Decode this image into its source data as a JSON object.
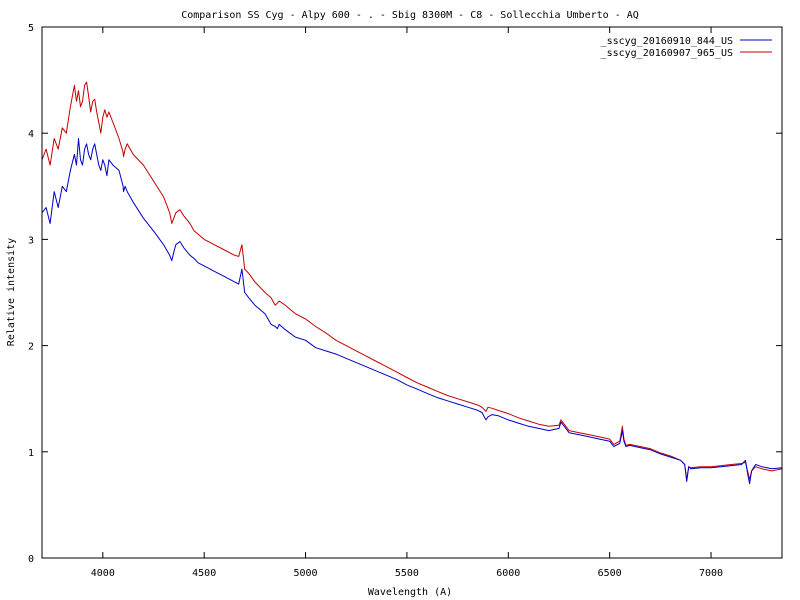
{
  "chart_data": {
    "type": "line",
    "title": "Comparison SS Cyg  - Alpy 600 - . - Sbig 8300M -  C8  - Sollecchia Umberto - AQ",
    "xlabel": "Wavelength (A)",
    "ylabel": "Relative intensity",
    "xlim": [
      3700,
      7350
    ],
    "ylim": [
      0,
      5
    ],
    "xticks": [
      4000,
      4500,
      5000,
      5500,
      6000,
      6500,
      7000
    ],
    "yticks": [
      0,
      1,
      2,
      3,
      4,
      5
    ],
    "grid": false,
    "legend_position": "top-right",
    "series": [
      {
        "name": "_sscyg_20160910_844_US",
        "color": "#0000c8",
        "x": [
          3700,
          3720,
          3740,
          3760,
          3780,
          3800,
          3820,
          3840,
          3860,
          3870,
          3880,
          3890,
          3900,
          3910,
          3920,
          3930,
          3940,
          3950,
          3960,
          3970,
          3980,
          3990,
          4000,
          4010,
          4020,
          4030,
          4050,
          4080,
          4100,
          4102,
          4110,
          4120,
          4150,
          4200,
          4250,
          4300,
          4330,
          4340,
          4350,
          4360,
          4380,
          4400,
          4430,
          4450,
          4470,
          4500,
          4550,
          4600,
          4650,
          4670,
          4686,
          4700,
          4720,
          4750,
          4800,
          4830,
          4850,
          4861,
          4870,
          4900,
          4950,
          5000,
          5050,
          5100,
          5150,
          5200,
          5250,
          5300,
          5350,
          5400,
          5450,
          5500,
          5550,
          5600,
          5650,
          5700,
          5750,
          5800,
          5850,
          5870,
          5890,
          5900,
          5920,
          5950,
          6000,
          6050,
          6100,
          6150,
          6200,
          6250,
          6260,
          6300,
          6350,
          6400,
          6450,
          6500,
          6520,
          6550,
          6563,
          6570,
          6580,
          6600,
          6650,
          6700,
          6750,
          6800,
          6850,
          6870,
          6880,
          6890,
          6900,
          6950,
          7000,
          7050,
          7100,
          7150,
          7170,
          7180,
          7190,
          7200,
          7220,
          7250,
          7300,
          7350
        ],
        "y": [
          3.25,
          3.3,
          3.15,
          3.45,
          3.3,
          3.5,
          3.45,
          3.65,
          3.8,
          3.7,
          3.95,
          3.75,
          3.7,
          3.85,
          3.9,
          3.8,
          3.75,
          3.85,
          3.9,
          3.8,
          3.7,
          3.65,
          3.75,
          3.7,
          3.6,
          3.75,
          3.7,
          3.65,
          3.5,
          3.45,
          3.5,
          3.45,
          3.35,
          3.2,
          3.08,
          2.95,
          2.85,
          2.8,
          2.88,
          2.95,
          2.98,
          2.92,
          2.85,
          2.82,
          2.78,
          2.75,
          2.7,
          2.65,
          2.6,
          2.58,
          2.72,
          2.5,
          2.45,
          2.38,
          2.3,
          2.2,
          2.18,
          2.16,
          2.2,
          2.15,
          2.08,
          2.05,
          1.98,
          1.95,
          1.92,
          1.88,
          1.84,
          1.8,
          1.76,
          1.72,
          1.68,
          1.63,
          1.59,
          1.55,
          1.51,
          1.48,
          1.45,
          1.42,
          1.39,
          1.37,
          1.3,
          1.33,
          1.35,
          1.34,
          1.3,
          1.27,
          1.24,
          1.22,
          1.2,
          1.22,
          1.28,
          1.18,
          1.16,
          1.14,
          1.12,
          1.1,
          1.05,
          1.08,
          1.2,
          1.1,
          1.05,
          1.06,
          1.04,
          1.02,
          0.98,
          0.95,
          0.92,
          0.88,
          0.72,
          0.86,
          0.84,
          0.85,
          0.85,
          0.86,
          0.87,
          0.88,
          0.92,
          0.8,
          0.7,
          0.82,
          0.88,
          0.86,
          0.84,
          0.85
        ]
      },
      {
        "name": "_sscyg_20160907_965_US",
        "color": "#c80000",
        "x": [
          3700,
          3720,
          3740,
          3760,
          3780,
          3800,
          3820,
          3840,
          3860,
          3870,
          3880,
          3890,
          3900,
          3910,
          3920,
          3930,
          3940,
          3950,
          3960,
          3970,
          3980,
          3990,
          4000,
          4010,
          4020,
          4030,
          4050,
          4080,
          4100,
          4102,
          4110,
          4120,
          4150,
          4200,
          4250,
          4300,
          4330,
          4340,
          4350,
          4360,
          4380,
          4400,
          4430,
          4450,
          4470,
          4500,
          4550,
          4600,
          4650,
          4670,
          4686,
          4700,
          4720,
          4750,
          4800,
          4830,
          4850,
          4861,
          4870,
          4900,
          4950,
          5000,
          5050,
          5100,
          5150,
          5200,
          5250,
          5300,
          5350,
          5400,
          5450,
          5500,
          5550,
          5600,
          5650,
          5700,
          5750,
          5800,
          5850,
          5870,
          5890,
          5900,
          5920,
          5950,
          6000,
          6050,
          6100,
          6150,
          6200,
          6250,
          6260,
          6300,
          6350,
          6400,
          6450,
          6500,
          6520,
          6550,
          6563,
          6570,
          6580,
          6600,
          6650,
          6700,
          6750,
          6800,
          6850,
          6870,
          6880,
          6890,
          6900,
          6950,
          7000,
          7050,
          7100,
          7150,
          7170,
          7180,
          7190,
          7200,
          7220,
          7250,
          7300,
          7350
        ],
        "y": [
          3.75,
          3.85,
          3.7,
          3.95,
          3.85,
          4.05,
          4.0,
          4.25,
          4.45,
          4.3,
          4.4,
          4.25,
          4.3,
          4.45,
          4.48,
          4.35,
          4.2,
          4.3,
          4.32,
          4.2,
          4.1,
          4.0,
          4.15,
          4.22,
          4.15,
          4.2,
          4.1,
          3.95,
          3.82,
          3.78,
          3.85,
          3.9,
          3.8,
          3.7,
          3.55,
          3.4,
          3.25,
          3.15,
          3.2,
          3.25,
          3.28,
          3.22,
          3.15,
          3.08,
          3.05,
          3.0,
          2.95,
          2.9,
          2.85,
          2.84,
          2.95,
          2.72,
          2.68,
          2.6,
          2.5,
          2.45,
          2.38,
          2.4,
          2.42,
          2.38,
          2.3,
          2.25,
          2.18,
          2.12,
          2.05,
          2.0,
          1.95,
          1.9,
          1.85,
          1.8,
          1.75,
          1.7,
          1.65,
          1.61,
          1.57,
          1.53,
          1.5,
          1.47,
          1.44,
          1.42,
          1.38,
          1.42,
          1.41,
          1.39,
          1.36,
          1.32,
          1.29,
          1.26,
          1.24,
          1.25,
          1.3,
          1.2,
          1.18,
          1.16,
          1.14,
          1.12,
          1.07,
          1.1,
          1.24,
          1.12,
          1.06,
          1.07,
          1.05,
          1.03,
          0.99,
          0.96,
          0.92,
          0.88,
          0.74,
          0.86,
          0.85,
          0.86,
          0.86,
          0.87,
          0.88,
          0.89,
          0.9,
          0.82,
          0.74,
          0.82,
          0.86,
          0.84,
          0.82,
          0.84
        ]
      }
    ]
  }
}
